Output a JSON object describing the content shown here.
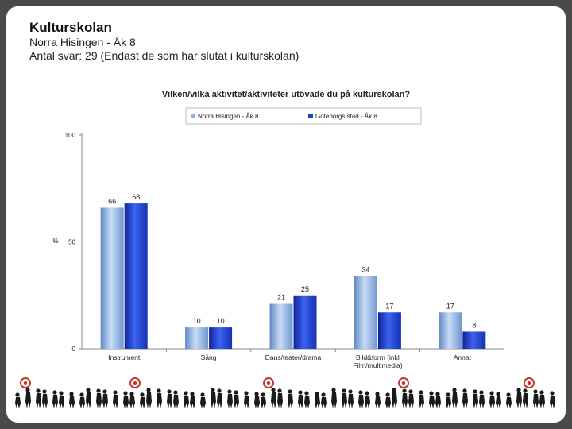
{
  "slide": {
    "title": "Kulturskolan",
    "subtitle_line1": "Norra Hisingen - Åk 8",
    "subtitle_line2": "Antal svar: 29 (Endast de som har slutat i kulturskolan)"
  },
  "chart_data": {
    "type": "bar",
    "title": "Vilken/vilka aktivitet/aktiviteter utövade du på kulturskolan?",
    "ylabel": "%",
    "xlabel": "",
    "ylim": [
      0,
      100
    ],
    "yticks": [
      0,
      50,
      100
    ],
    "grid": false,
    "legend_position": "top",
    "categories": [
      "Instrument",
      "Sång",
      "Dans/teater/drama",
      "Bild&form (inkl Film/multimedia)",
      "Annat"
    ],
    "category_lines": [
      [
        "Instrument"
      ],
      [
        "Sång"
      ],
      [
        "Dans/teater/drama"
      ],
      [
        "Bild&form (inkl",
        "Film/multimedia)"
      ],
      [
        "Annat"
      ]
    ],
    "series": [
      {
        "name": "Norra Hisingen - Åk 8",
        "values": [
          66,
          10,
          21,
          34,
          17
        ],
        "color": "#8db4e2"
      },
      {
        "name": "Göteborgs stad - Åk 8",
        "values": [
          68,
          10,
          25,
          17,
          8
        ],
        "color": "#1f3fd0"
      }
    ]
  }
}
